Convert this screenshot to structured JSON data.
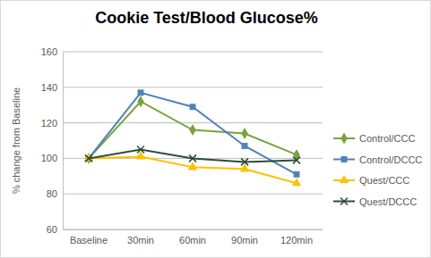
{
  "chart_data": {
    "type": "line",
    "title": "Cookie Test/Blood Glucose%",
    "y_label": "% change from Baseline",
    "categories": [
      "Baseline",
      "30min",
      "60min",
      "90min",
      "120min"
    ],
    "series": [
      {
        "name": "Control/CCC",
        "color": "#7aa33e",
        "marker": "diamond",
        "values": [
          100,
          132,
          116,
          114,
          102
        ]
      },
      {
        "name": "Control/DCCC",
        "color": "#4f81bd",
        "marker": "square",
        "values": [
          100,
          137,
          129,
          107,
          91
        ]
      },
      {
        "name": "Quest/CCC",
        "color": "#ffc000",
        "marker": "triangle",
        "values": [
          100,
          101,
          95,
          94,
          86
        ]
      },
      {
        "name": "Quest/DCCC",
        "color": "#2e4d3a",
        "marker": "x",
        "values": [
          100,
          105,
          100,
          98,
          99
        ]
      }
    ],
    "ylim": [
      60,
      160
    ],
    "yticks": [
      60,
      80,
      100,
      120,
      140,
      160
    ],
    "grid": true,
    "legend": "right"
  }
}
